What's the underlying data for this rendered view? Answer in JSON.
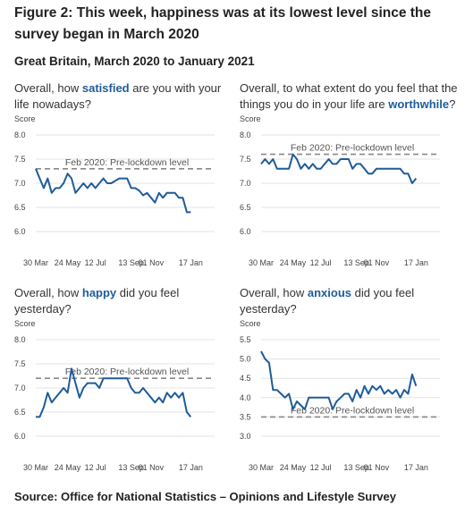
{
  "figure": {
    "title": "Figure 2: This week, happiness was at its lowest level since the survey began in March 2020",
    "subtitle": "Great Britain, March 2020 to January 2021",
    "source": "Source: Office for National Statistics – Opinions and Lifestyle Survey"
  },
  "colors": {
    "series": "#1f5c99",
    "reference": "#888888",
    "grid": "#e3e3e3"
  },
  "chart_data": [
    {
      "type": "line",
      "question": {
        "before": "Overall, how ",
        "highlight": "satisfied",
        "after": " are you with your life nowadays?"
      },
      "ylabel": "Score",
      "ylim": [
        6.0,
        8.0
      ],
      "yticks": [
        "8.0",
        "7.5",
        "7.0",
        "6.5",
        "6.0"
      ],
      "xlim": [
        0,
        45
      ],
      "xtick_positions": [
        0,
        8,
        15,
        24,
        29,
        39
      ],
      "xtick_labels": [
        "30 Mar",
        "24 May",
        "12 Jul",
        "13 Sep",
        "01 Nov",
        "17 Jan"
      ],
      "reference": {
        "value": 7.3,
        "label": "Feb 2020: Pre-lockdown level"
      },
      "series": [
        {
          "values": [
            7.3,
            7.1,
            6.9,
            7.1,
            6.8,
            6.9,
            6.9,
            7.0,
            7.2,
            7.1,
            6.8,
            6.9,
            7.0,
            6.9,
            7.0,
            6.9,
            7.0,
            7.1,
            7.0,
            7.0,
            7.05,
            7.1,
            7.1,
            7.1,
            6.9,
            6.9,
            6.85,
            6.75,
            6.8,
            6.7,
            6.6,
            6.8,
            6.7,
            6.8,
            6.8,
            6.8,
            6.7,
            6.7,
            6.4,
            6.4
          ]
        }
      ]
    },
    {
      "type": "line",
      "question": {
        "before": "Overall, to what extent do you feel that the things you do in your life are ",
        "highlight": "worthwhile",
        "after": "?"
      },
      "ylabel": "Score",
      "ylim": [
        6.0,
        8.0
      ],
      "yticks": [
        "8.0",
        "7.5",
        "7.0",
        "6.5",
        "6.0"
      ],
      "xlim": [
        0,
        45
      ],
      "xtick_positions": [
        0,
        8,
        15,
        24,
        29,
        39
      ],
      "xtick_labels": [
        "30 Mar",
        "24 May",
        "12 Jul",
        "13 Sep",
        "01 Nov",
        "17 Jan"
      ],
      "reference": {
        "value": 7.6,
        "label": "Feb 2020: Pre-lockdown level"
      },
      "series": [
        {
          "values": [
            7.4,
            7.5,
            7.4,
            7.5,
            7.3,
            7.3,
            7.3,
            7.3,
            7.6,
            7.5,
            7.3,
            7.4,
            7.3,
            7.4,
            7.3,
            7.3,
            7.4,
            7.5,
            7.4,
            7.4,
            7.5,
            7.5,
            7.5,
            7.3,
            7.4,
            7.4,
            7.3,
            7.2,
            7.2,
            7.3,
            7.3,
            7.3,
            7.3,
            7.3,
            7.3,
            7.3,
            7.2,
            7.2,
            7.0,
            7.1
          ]
        }
      ]
    },
    {
      "type": "line",
      "question": {
        "before": "Overall, how ",
        "highlight": "happy",
        "after": " did you feel yesterday?"
      },
      "ylabel": "Score",
      "ylim": [
        6.0,
        8.0
      ],
      "yticks": [
        "8.0",
        "7.5",
        "7.0",
        "6.5",
        "6.0"
      ],
      "xlim": [
        0,
        45
      ],
      "xtick_positions": [
        0,
        8,
        15,
        24,
        29,
        39
      ],
      "xtick_labels": [
        "30 Mar",
        "24 May",
        "12 Jul",
        "13 Sep",
        "01 Nov",
        "17 Jan"
      ],
      "reference": {
        "value": 7.2,
        "label": "Feb 2020: Pre-lockdown level"
      },
      "series": [
        {
          "values": [
            6.4,
            6.4,
            6.6,
            6.9,
            6.7,
            6.8,
            6.9,
            7.0,
            6.9,
            7.4,
            7.1,
            6.8,
            7.0,
            7.1,
            7.1,
            7.1,
            7.0,
            7.2,
            7.2,
            7.2,
            7.2,
            7.2,
            7.2,
            7.2,
            7.0,
            6.9,
            6.9,
            7.0,
            6.9,
            6.8,
            6.7,
            6.8,
            6.7,
            6.9,
            6.8,
            6.9,
            6.8,
            6.9,
            6.5,
            6.4
          ]
        }
      ]
    },
    {
      "type": "line",
      "question": {
        "before": "Overall, how ",
        "highlight": "anxious",
        "after": " did you feel yesterday?"
      },
      "ylabel": "Score",
      "ylim": [
        3.0,
        5.5
      ],
      "yticks": [
        "5.5",
        "5.0",
        "4.5",
        "4.0",
        "3.5",
        "3.0"
      ],
      "xlim": [
        0,
        45
      ],
      "xtick_positions": [
        0,
        8,
        15,
        24,
        29,
        39
      ],
      "xtick_labels": [
        "30 Mar",
        "24 May",
        "12 Jul",
        "13 Sep",
        "01 Nov",
        "17 Jan"
      ],
      "reference": {
        "value": 3.5,
        "label": "Feb 2020: Pre-lockdown level"
      },
      "series": [
        {
          "values": [
            5.2,
            5.0,
            4.9,
            4.2,
            4.2,
            4.1,
            4.0,
            4.1,
            3.7,
            3.9,
            3.8,
            3.7,
            4.0,
            4.0,
            4.0,
            4.0,
            4.0,
            4.0,
            3.7,
            3.9,
            4.0,
            4.1,
            4.1,
            3.9,
            4.2,
            4.0,
            4.3,
            4.1,
            4.3,
            4.2,
            4.3,
            4.1,
            4.2,
            4.1,
            4.2,
            4.0,
            4.2,
            4.1,
            4.6,
            4.3
          ]
        }
      ]
    }
  ]
}
